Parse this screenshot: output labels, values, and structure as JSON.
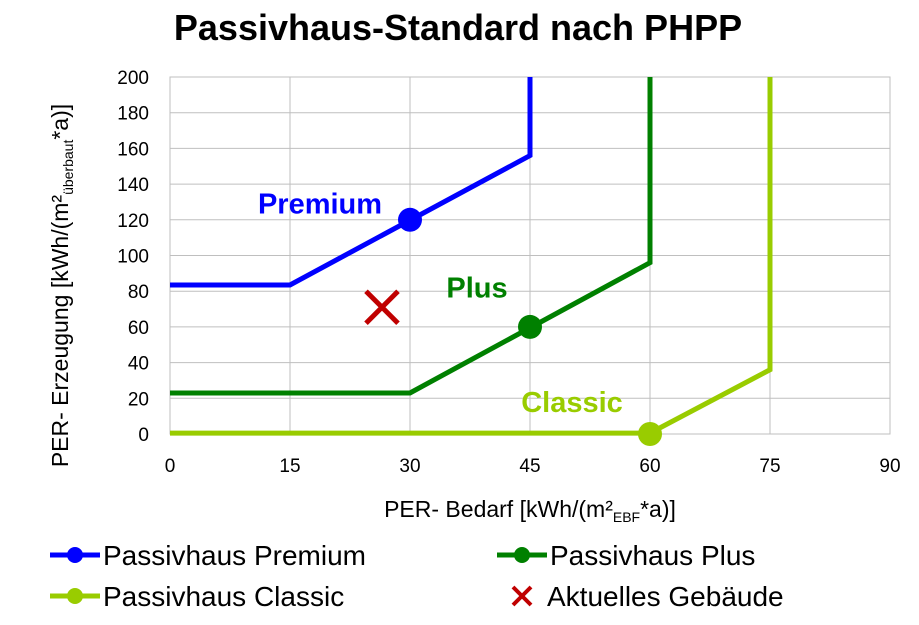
{
  "chart_data": {
    "type": "line",
    "title": "Passivhaus-Standard nach PHPP",
    "xlabel": {
      "parts": [
        {
          "text": "PER- Bedarf [kWh/(m²",
          "sub": false
        },
        {
          "text": "EBF",
          "sub": true
        },
        {
          "text": "*a)]",
          "sub": false
        }
      ]
    },
    "ylabel": {
      "parts": [
        {
          "text": "PER- Erzeugung [kWh/(m²",
          "sub": false
        },
        {
          "text": "überbaut",
          "sub": true
        },
        {
          "text": "*a)]",
          "sub": false
        }
      ]
    },
    "xlim": [
      0,
      90
    ],
    "ylim": [
      0,
      200
    ],
    "x_ticks": [
      0,
      15,
      30,
      45,
      60,
      75,
      90
    ],
    "y_ticks": [
      0,
      20,
      40,
      60,
      80,
      100,
      120,
      140,
      160,
      180,
      200
    ],
    "grid": true,
    "series": [
      {
        "name": "Passivhaus Premium",
        "color": "#0000ff",
        "annotation": "Premium",
        "points": [
          [
            0,
            83.5
          ],
          [
            15,
            83.5
          ],
          [
            45,
            156
          ],
          [
            45,
            200
          ]
        ],
        "marker": [
          30,
          120
        ]
      },
      {
        "name": "Passivhaus Plus",
        "color": "#008000",
        "annotation": "Plus",
        "points": [
          [
            0,
            23
          ],
          [
            30,
            23
          ],
          [
            60,
            96
          ],
          [
            60,
            200
          ]
        ],
        "marker": [
          45,
          60
        ]
      },
      {
        "name": "Passivhaus Classic",
        "color": "#99cc00",
        "annotation": "Classic",
        "points": [
          [
            0,
            0.5
          ],
          [
            60,
            0.5
          ],
          [
            75,
            36
          ],
          [
            75,
            200
          ]
        ],
        "marker": [
          60,
          0
        ]
      }
    ],
    "current_building": {
      "name": "Aktuelles Gebäude",
      "color": "#c00000",
      "x": 26.5,
      "y": 71
    },
    "legend": {
      "position": "bottom",
      "entries": [
        "Passivhaus Premium",
        "Passivhaus Plus",
        "Passivhaus Classic",
        "Aktuelles Gebäude"
      ]
    }
  }
}
